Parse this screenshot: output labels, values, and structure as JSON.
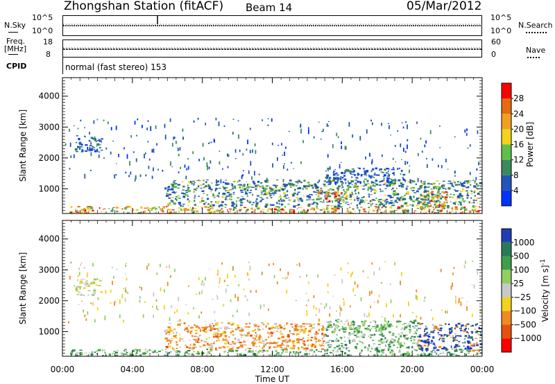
{
  "header": {
    "station": "Zhongshan Station (fitACF)",
    "beam": "Beam 14",
    "date": "05/Mar/2012"
  },
  "panels": {
    "nsky_label": "N.Sky",
    "nsearch_label": "N.Search",
    "nsky_ticks": [
      "10^5",
      "10^0"
    ],
    "nsearch_ticks": [
      "10^5",
      "10^0"
    ],
    "freq_label_line1": "Freq.",
    "freq_label_line2": "[MHz]",
    "freq_ticks": [
      "18",
      "8"
    ],
    "nave_label": "Nave",
    "nave_ticks": [
      "60",
      "0"
    ],
    "cpid_label": "CPID",
    "cpid_text": "normal (fast stereo) 153"
  },
  "chart_data": [
    {
      "type": "heatmap",
      "title": "",
      "ylabel": "Slant Range [km]",
      "ylim": [
        200,
        4600
      ],
      "y_ticks": [
        1000,
        2000,
        3000,
        4000
      ],
      "colorbar": {
        "label": "Power [dB]",
        "ticks": [
          4,
          8,
          12,
          16,
          20,
          24,
          28
        ],
        "range": [
          0,
          32
        ],
        "colors": [
          "#0033ff",
          "#2255b8",
          "#3a8a5a",
          "#5fbf4a",
          "#f2d21a",
          "#f0a020",
          "#e66a10",
          "#ff0000"
        ]
      },
      "regions": [
        {
          "t0": 0.2,
          "t1": 23.9,
          "r0": 200,
          "r1": 450,
          "level": "strong"
        },
        {
          "t0": 5.8,
          "t1": 23.9,
          "r0": 450,
          "r1": 1300,
          "level": "moderate"
        },
        {
          "t0": 14.5,
          "t1": 16.2,
          "r0": 600,
          "r1": 1000,
          "level": "strong"
        },
        {
          "t0": 20.4,
          "t1": 22.0,
          "r0": 350,
          "r1": 950,
          "level": "strong"
        },
        {
          "t0": 0.7,
          "t1": 2.2,
          "r0": 2200,
          "r1": 2750,
          "level": "weak"
        },
        {
          "t0": 15.0,
          "t1": 19.5,
          "r0": 1200,
          "r1": 1700,
          "level": "weak"
        }
      ]
    },
    {
      "type": "heatmap",
      "title": "",
      "xlabel": "Time UT",
      "x_ticks": [
        "00:00",
        "04:00",
        "08:00",
        "12:00",
        "16:00",
        "20:00",
        "00:00"
      ],
      "ylabel": "Slant Range [km]",
      "ylim": [
        200,
        4600
      ],
      "y_ticks": [
        1000,
        2000,
        3000,
        4000
      ],
      "colorbar": {
        "label": "Velocity [m s^-1]",
        "ticks": [
          "1000",
          "500",
          "100",
          "25",
          "−25",
          "−100",
          "−500",
          "−1000"
        ],
        "colors": [
          "#1f3fb8",
          "#2a7a5a",
          "#3f9e4a",
          "#8fd060",
          "#c8c8c8",
          "#f2d21a",
          "#f08a20",
          "#e85010",
          "#ff0000"
        ]
      },
      "regions": [
        {
          "t0": 0.2,
          "t1": 23.9,
          "r0": 200,
          "r1": 450,
          "level": "positive"
        },
        {
          "t0": 5.8,
          "t1": 15.0,
          "r0": 450,
          "r1": 1300,
          "level": "negative"
        },
        {
          "t0": 15.0,
          "t1": 20.3,
          "r0": 450,
          "r1": 1400,
          "level": "positive"
        },
        {
          "t0": 20.3,
          "t1": 23.9,
          "r0": 400,
          "r1": 1300,
          "level": "strong-positive"
        },
        {
          "t0": 0.7,
          "t1": 2.2,
          "r0": 2200,
          "r1": 2750,
          "level": "near-zero"
        }
      ]
    }
  ]
}
